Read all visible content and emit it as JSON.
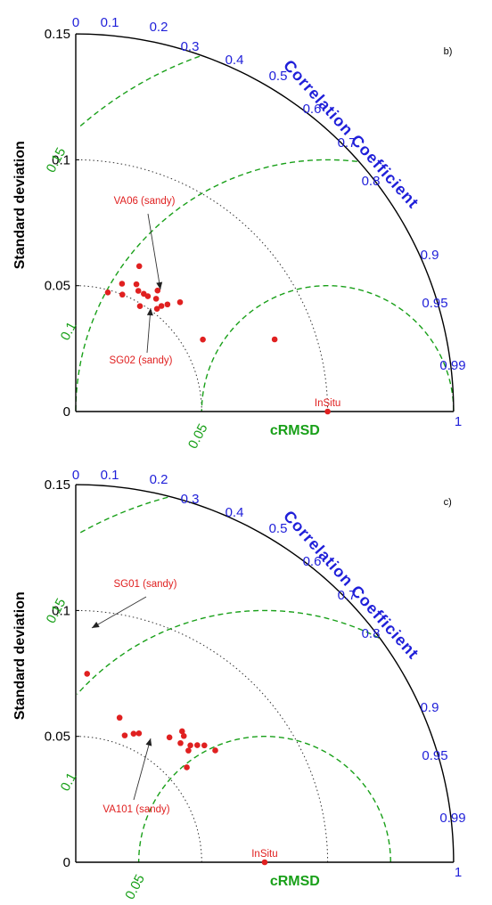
{
  "chart_data": [
    {
      "type": "taylor",
      "panel_label": "b)",
      "ylabel": "Standard deviation",
      "xlabel": "cRMSD",
      "correlation_title": "Correlation Coefficient",
      "std_ticks": [
        "0",
        "0.05",
        "0.1",
        "0.15"
      ],
      "corr_ticks": [
        "0",
        "0.1",
        "0.2",
        "0.3",
        "0.4",
        "0.5",
        "0.6",
        "0.7",
        "0.8",
        "0.9",
        "0.95",
        "0.99",
        "1"
      ],
      "rmsd_ticks": [
        "0.05",
        "0.1",
        "0.15"
      ],
      "reference": {
        "label": "InSitu",
        "std": 0.1
      },
      "points": [
        {
          "corr": 0.26,
          "std": 0.049
        },
        {
          "corr": 0.34,
          "std": 0.054
        },
        {
          "corr": 0.37,
          "std": 0.05
        },
        {
          "corr": 0.4,
          "std": 0.063
        },
        {
          "corr": 0.43,
          "std": 0.056
        },
        {
          "corr": 0.46,
          "std": 0.054
        },
        {
          "corr": 0.5,
          "std": 0.054
        },
        {
          "corr": 0.52,
          "std": 0.049
        },
        {
          "corr": 0.53,
          "std": 0.054
        },
        {
          "corr": 0.56,
          "std": 0.058
        },
        {
          "corr": 0.58,
          "std": 0.055
        },
        {
          "corr": 0.62,
          "std": 0.052
        },
        {
          "corr": 0.63,
          "std": 0.054
        },
        {
          "corr": 0.65,
          "std": 0.056
        },
        {
          "corr": 0.69,
          "std": 0.06
        },
        {
          "corr": 0.87,
          "std": 0.058
        },
        {
          "corr": 0.94,
          "std": 0.084
        }
      ],
      "annotations": [
        {
          "text": "VA06 (sandy)"
        },
        {
          "text": "SG02 (sandy)"
        }
      ]
    },
    {
      "type": "taylor",
      "panel_label": "c)",
      "ylabel": "Standard deviation",
      "xlabel": "cRMSD",
      "correlation_title": "Correlation Coefficient",
      "std_ticks": [
        "0",
        "0.05",
        "0.1",
        "0.15"
      ],
      "corr_ticks": [
        "0",
        "0.1",
        "0.2",
        "0.3",
        "0.4",
        "0.5",
        "0.6",
        "0.7",
        "0.8",
        "0.9",
        "0.95",
        "0.99",
        "1"
      ],
      "rmsd_ticks": [
        "0.05",
        "0.1",
        "0.15"
      ],
      "reference": {
        "label": "InSitu",
        "std": 0.075
      },
      "points": [
        {
          "corr": 0.06,
          "std": 0.075
        },
        {
          "corr": 0.29,
          "std": 0.06
        },
        {
          "corr": 0.36,
          "std": 0.054
        },
        {
          "corr": 0.41,
          "std": 0.056
        },
        {
          "corr": 0.44,
          "std": 0.057
        },
        {
          "corr": 0.6,
          "std": 0.062
        },
        {
          "corr": 0.63,
          "std": 0.067
        },
        {
          "corr": 0.65,
          "std": 0.066
        },
        {
          "corr": 0.66,
          "std": 0.063
        },
        {
          "corr": 0.7,
          "std": 0.065
        },
        {
          "corr": 0.71,
          "std": 0.063
        },
        {
          "corr": 0.72,
          "std": 0.067
        },
        {
          "corr": 0.74,
          "std": 0.069
        },
        {
          "corr": 0.76,
          "std": 0.058
        },
        {
          "corr": 0.78,
          "std": 0.071
        }
      ],
      "annotations": [
        {
          "text": "SG01 (sandy)"
        },
        {
          "text": "VA101 (sandy)"
        }
      ]
    }
  ]
}
